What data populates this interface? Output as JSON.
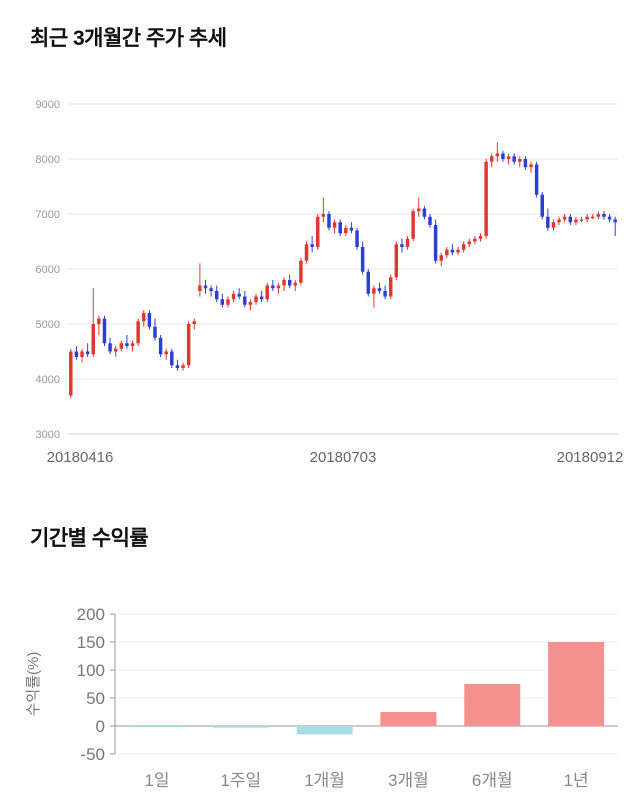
{
  "chart_data": [
    {
      "type": "candlestick",
      "title": "최근 3개월간 주가 추세",
      "ylim": [
        3000,
        9000
      ],
      "yticks": [
        3000,
        4000,
        5000,
        6000,
        7000,
        8000,
        9000
      ],
      "xtick_labels": [
        "20180416",
        "20180703",
        "20180912"
      ],
      "up_color": "#e0382e",
      "down_color": "#2b3fd0",
      "grid_color": "#e7e7e7",
      "axis_color": "#cccccc",
      "tick_text_color": "#999999",
      "date_text_color": "#666666",
      "candles": [
        [
          3700,
          4550,
          3650,
          4500
        ],
        [
          4500,
          4600,
          4350,
          4400
        ],
        [
          4400,
          4550,
          4300,
          4500
        ],
        [
          4500,
          4650,
          4400,
          4450
        ],
        [
          4450,
          5650,
          4400,
          5000
        ],
        [
          5000,
          5150,
          4800,
          5100
        ],
        [
          5100,
          5150,
          4600,
          4650
        ],
        [
          4650,
          4750,
          4450,
          4500
        ],
        [
          4500,
          4600,
          4400,
          4550
        ],
        [
          4550,
          4700,
          4500,
          4650
        ],
        [
          4650,
          4800,
          4550,
          4600
        ],
        [
          4600,
          4700,
          4500,
          4650
        ],
        [
          4650,
          5100,
          4600,
          5050
        ],
        [
          5050,
          5250,
          4950,
          5200
        ],
        [
          5200,
          5250,
          4900,
          4950
        ],
        [
          4950,
          5100,
          4700,
          4750
        ],
        [
          4750,
          4800,
          4400,
          4450
        ],
        [
          4450,
          4550,
          4350,
          4500
        ],
        [
          4500,
          4550,
          4200,
          4250
        ],
        [
          4250,
          4350,
          4150,
          4200
        ],
        [
          4200,
          4300,
          4150,
          4250
        ],
        [
          4250,
          5050,
          4200,
          5000
        ],
        [
          5000,
          5100,
          4900,
          5050
        ],
        [
          5600,
          6100,
          5500,
          5700
        ],
        [
          5700,
          5800,
          5550,
          5650
        ],
        [
          5650,
          5700,
          5500,
          5600
        ],
        [
          5600,
          5700,
          5400,
          5450
        ],
        [
          5450,
          5550,
          5300,
          5350
        ],
        [
          5350,
          5500,
          5300,
          5450
        ],
        [
          5450,
          5600,
          5400,
          5550
        ],
        [
          5550,
          5650,
          5450,
          5500
        ],
        [
          5500,
          5600,
          5300,
          5350
        ],
        [
          5350,
          5450,
          5250,
          5400
        ],
        [
          5400,
          5550,
          5350,
          5500
        ],
        [
          5500,
          5600,
          5400,
          5450
        ],
        [
          5450,
          5750,
          5400,
          5700
        ],
        [
          5700,
          5800,
          5600,
          5650
        ],
        [
          5650,
          5750,
          5550,
          5700
        ],
        [
          5700,
          5850,
          5600,
          5800
        ],
        [
          5800,
          5900,
          5650,
          5700
        ],
        [
          5700,
          5800,
          5600,
          5750
        ],
        [
          5750,
          6200,
          5700,
          6150
        ],
        [
          6150,
          6500,
          6100,
          6450
        ],
        [
          6450,
          6600,
          6300,
          6400
        ],
        [
          6400,
          7000,
          6350,
          6950
        ],
        [
          6950,
          7300,
          6850,
          7000
        ],
        [
          7000,
          7050,
          6700,
          6750
        ],
        [
          6750,
          6900,
          6650,
          6850
        ],
        [
          6850,
          6900,
          6600,
          6650
        ],
        [
          6650,
          6800,
          6600,
          6750
        ],
        [
          6750,
          6850,
          6650,
          6700
        ],
        [
          6700,
          6750,
          6350,
          6400
        ],
        [
          6400,
          6500,
          5900,
          5950
        ],
        [
          5950,
          6000,
          5500,
          5550
        ],
        [
          5550,
          5700,
          5300,
          5650
        ],
        [
          5650,
          5750,
          5550,
          5600
        ],
        [
          5600,
          5700,
          5450,
          5500
        ],
        [
          5500,
          5900,
          5450,
          5850
        ],
        [
          5850,
          6500,
          5800,
          6450
        ],
        [
          6450,
          6550,
          6300,
          6400
        ],
        [
          6400,
          6600,
          6350,
          6550
        ],
        [
          6550,
          7100,
          6500,
          7050
        ],
        [
          7050,
          7300,
          6950,
          7100
        ],
        [
          7100,
          7150,
          6900,
          6950
        ],
        [
          6950,
          7000,
          6750,
          6800
        ],
        [
          6800,
          6900,
          6100,
          6150
        ],
        [
          6150,
          6300,
          6050,
          6250
        ],
        [
          6250,
          6400,
          6200,
          6350
        ],
        [
          6350,
          6450,
          6250,
          6300
        ],
        [
          6300,
          6400,
          6250,
          6350
        ],
        [
          6350,
          6500,
          6300,
          6450
        ],
        [
          6450,
          6550,
          6400,
          6500
        ],
        [
          6500,
          6600,
          6450,
          6550
        ],
        [
          6550,
          6650,
          6500,
          6600
        ],
        [
          6600,
          8000,
          6550,
          7950
        ],
        [
          7950,
          8100,
          7850,
          8050
        ],
        [
          8050,
          8300,
          7950,
          8100
        ],
        [
          8100,
          8150,
          7950,
          8000
        ],
        [
          8000,
          8100,
          7900,
          8050
        ],
        [
          8050,
          8100,
          7900,
          7950
        ],
        [
          7950,
          8050,
          7850,
          8000
        ],
        [
          8000,
          8050,
          7800,
          7850
        ],
        [
          7850,
          7950,
          7750,
          7900
        ],
        [
          7900,
          7950,
          7300,
          7350
        ],
        [
          7350,
          7400,
          6900,
          6950
        ],
        [
          6950,
          7100,
          6700,
          6750
        ],
        [
          6750,
          6900,
          6700,
          6850
        ],
        [
          6850,
          6950,
          6800,
          6900
        ],
        [
          6900,
          7000,
          6850,
          6950
        ],
        [
          6950,
          7000,
          6800,
          6850
        ],
        [
          6850,
          6950,
          6800,
          6900
        ],
        [
          6900,
          6950,
          6850,
          6900
        ],
        [
          6900,
          7000,
          6850,
          6950
        ],
        [
          6950,
          7000,
          6900,
          6950
        ],
        [
          6950,
          7050,
          6900,
          7000
        ],
        [
          7000,
          7050,
          6900,
          6950
        ],
        [
          6950,
          7000,
          6850,
          6900
        ],
        [
          6900,
          6950,
          6600,
          6850
        ]
      ]
    },
    {
      "type": "bar",
      "title": "기간별 수익률",
      "ylabel": "수익률(%)",
      "categories": [
        "1일",
        "1주일",
        "1개월",
        "3개월",
        "6개월",
        "1년"
      ],
      "values": [
        -1,
        -3,
        -15,
        25,
        75,
        150
      ],
      "ylim": [
        -50,
        200
      ],
      "yticks": [
        -50,
        0,
        50,
        100,
        150,
        200
      ],
      "positive_color": "#f4908e",
      "negative_color": "#aadbe8",
      "axis_color": "#999999",
      "grid_color": "#f0f0f0",
      "tick_text_color": "#777777",
      "category_text_color": "#888888"
    }
  ]
}
